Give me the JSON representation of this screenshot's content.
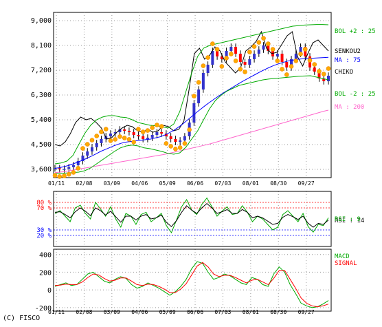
{
  "copyright": "(C) FISCO",
  "chart_data": [
    {
      "type": "line",
      "panel": "price",
      "grid": true,
      "ylim": [
        3300,
        9300
      ],
      "y_ticks": [
        3600,
        4500,
        5400,
        6300,
        7200,
        8100,
        9000
      ],
      "y_tick_labels": [
        "3,600",
        "4,500",
        "5,400",
        "6,300",
        "7,200",
        "8,100",
        "9,000"
      ],
      "x_tick_labels": [
        "01/11",
        "02/08",
        "03/09",
        "04/06",
        "05/09",
        "06/06",
        "07/03",
        "08/01",
        "08/30",
        "09/27"
      ],
      "legend": [
        {
          "label": "BOL +2 : 25",
          "color": "#00aa00"
        },
        {
          "label": "SENKOU2",
          "color": "#000000"
        },
        {
          "label": "MA : 75",
          "color": "#0000ff"
        },
        {
          "label": "CHIKO",
          "color": "#000000"
        },
        {
          "label": "BOL -2 : 25",
          "color": "#00aa00"
        },
        {
          "label": "MA : 200",
          "color": "#ff66cc"
        }
      ],
      "series": [
        {
          "name": "CHIKO",
          "color": "#000000",
          "values": [
            4500,
            4450,
            4600,
            4900,
            5300,
            5500,
            5400,
            5450,
            5300,
            5100,
            4700,
            4750,
            4950,
            5100,
            5200,
            5150,
            5000,
            4950,
            5050,
            4950,
            5000,
            5200,
            5150,
            5000,
            5050,
            5350,
            6500,
            7800,
            8000,
            7600,
            7750,
            8050,
            7900,
            7500,
            7300,
            7100,
            7300,
            7900,
            8050,
            8250,
            8600,
            8000,
            7800,
            7850,
            8150,
            8450,
            8600,
            7700,
            7350,
            7800,
            8200,
            8300,
            8100,
            7900
          ]
        },
        {
          "name": "MA : 75",
          "color": "#0000ff",
          "values": [
            3640,
            3660,
            3700,
            3740,
            3800,
            3860,
            3930,
            4000,
            4080,
            4160,
            4250,
            4320,
            4390,
            4460,
            4520,
            4570,
            4600,
            4620,
            4640,
            4660,
            4680,
            4700,
            4740,
            4780,
            4840,
            4920,
            5010,
            5120,
            5240,
            5380,
            5520,
            5660,
            5790,
            5920,
            6040,
            6160,
            6270,
            6380,
            6480,
            6580,
            6680,
            6780,
            6870,
            6960,
            7050,
            7140,
            7220,
            7300,
            7370,
            7430,
            7480,
            7530,
            7560,
            7590,
            7610,
            7620,
            7630,
            7640,
            7650,
            7660,
            7670
          ]
        },
        {
          "name": "MA : 200",
          "color": "#ff66cc",
          "values": [
            3480,
            3500,
            3520,
            3550,
            3580,
            3610,
            3640,
            3670,
            3700,
            3730,
            3760,
            3790,
            3820,
            3850,
            3880,
            3910,
            3940,
            3970,
            4000,
            4030,
            4060,
            4090,
            4120,
            4150,
            4190,
            4230,
            4270,
            4310,
            4350,
            4390,
            4430,
            4470,
            4510,
            4560,
            4610,
            4660,
            4710,
            4760,
            4810,
            4860,
            4910,
            4960,
            5010,
            5060,
            5110,
            5160,
            5210,
            5260,
            5310,
            5360,
            5410,
            5460,
            5510,
            5560,
            5610,
            5660,
            5710,
            5750
          ]
        },
        {
          "name": "BOL +2 : 25",
          "color": "#00aa00",
          "values": [
            3800,
            3830,
            3900,
            4100,
            4500,
            4900,
            5200,
            5400,
            5500,
            5550,
            5550,
            5500,
            5480,
            5400,
            5300,
            5250,
            5200,
            5180,
            5150,
            5100,
            5250,
            5700,
            6400,
            7100,
            7700,
            8000,
            8100,
            8150,
            8200,
            8250,
            8300,
            8350,
            8400,
            8450,
            8500,
            8550,
            8600,
            8650,
            8700,
            8750,
            8800,
            8820,
            8840,
            8850,
            8860,
            8860,
            8850
          ]
        },
        {
          "name": "BOL -2 : 25",
          "color": "#00aa00",
          "values": [
            3450,
            3450,
            3470,
            3480,
            3500,
            3550,
            3650,
            3800,
            3950,
            4100,
            4250,
            4380,
            4450,
            4480,
            4450,
            4380,
            4350,
            4300,
            4250,
            4180,
            4150,
            4200,
            4400,
            4700,
            5000,
            5400,
            5800,
            6100,
            6300,
            6450,
            6550,
            6650,
            6700,
            6750,
            6800,
            6850,
            6880,
            6900,
            6920,
            6940,
            6960,
            6980,
            6990,
            7000,
            6950,
            6900,
            6850
          ]
        },
        {
          "name": "MACD",
          "panel": "macd",
          "color": "#00aa00",
          "values": [
            40,
            60,
            80,
            50,
            60,
            120,
            180,
            200,
            150,
            100,
            80,
            120,
            150,
            130,
            60,
            20,
            40,
            80,
            50,
            20,
            -20,
            -60,
            -20,
            40,
            120,
            240,
            320,
            300,
            200,
            120,
            140,
            180,
            160,
            120,
            80,
            60,
            140,
            120,
            60,
            40,
            180,
            260,
            200,
            60,
            -40,
            -150,
            -180,
            -200,
            -190,
            -160,
            -120
          ]
        },
        {
          "name": "SIGNAL",
          "panel": "macd",
          "color": "#ff0000",
          "values": [
            50,
            55,
            65,
            60,
            60,
            90,
            140,
            180,
            170,
            130,
            100,
            110,
            135,
            135,
            100,
            60,
            50,
            65,
            60,
            40,
            10,
            -30,
            -30,
            10,
            70,
            170,
            270,
            310,
            260,
            180,
            150,
            165,
            165,
            140,
            110,
            80,
            110,
            120,
            90,
            60,
            130,
            220,
            220,
            120,
            20,
            -90,
            -150,
            -180,
            -190,
            -180,
            -160
          ]
        }
      ],
      "candles": [
        3640,
        3600,
        3620,
        3680,
        3750,
        3900,
        4100,
        4250,
        4400,
        4550,
        4700,
        4800,
        4900,
        4950,
        5050,
        5000,
        4950,
        4850,
        4800,
        4700,
        4750,
        4850,
        4950,
        4900,
        4800,
        4700,
        4600,
        4650,
        4800,
        5300,
        6000,
        6500,
        7100,
        7400,
        7900,
        7700,
        7600,
        7900,
        8050,
        7800,
        7500,
        7400,
        7600,
        7800,
        7950,
        8100,
        7900,
        7700,
        7800,
        7500,
        7300,
        7600,
        7800,
        8050,
        7700,
        7300,
        7150,
        6900,
        6800,
        7000
      ]
    },
    {
      "type": "line",
      "panel": "rsi",
      "ylim": [
        0,
        100
      ],
      "y_tick_labels": [
        "80 %",
        "70 %",
        "30 %",
        "20 %"
      ],
      "legend": [
        {
          "label": "RSI : 14",
          "color": "#000000"
        },
        {
          "label": "RSI : 9",
          "color": "#00aa00"
        }
      ],
      "series": [
        {
          "name": "RSI : 9",
          "color": "#00aa00",
          "values": [
            60,
            65,
            55,
            45,
            70,
            75,
            60,
            50,
            80,
            68,
            55,
            72,
            50,
            35,
            60,
            55,
            40,
            58,
            62,
            45,
            52,
            60,
            38,
            25,
            48,
            72,
            85,
            66,
            58,
            76,
            88,
            72,
            55,
            64,
            72,
            58,
            60,
            74,
            62,
            45,
            55,
            50,
            40,
            30,
            35,
            58,
            65,
            55,
            45,
            60,
            36,
            26,
            40,
            38,
            52
          ]
        },
        {
          "name": "RSI : 14",
          "color": "#000000",
          "values": [
            62,
            63,
            58,
            52,
            63,
            70,
            64,
            56,
            70,
            65,
            57,
            64,
            54,
            44,
            55,
            55,
            48,
            55,
            58,
            50,
            52,
            57,
            44,
            36,
            47,
            62,
            74,
            66,
            60,
            70,
            78,
            70,
            60,
            63,
            67,
            60,
            60,
            67,
            62,
            52,
            55,
            52,
            46,
            40,
            42,
            53,
            58,
            54,
            49,
            55,
            42,
            35,
            42,
            40,
            48
          ]
        }
      ]
    },
    {
      "type": "line",
      "panel": "macd",
      "ylim": [
        -240,
        460
      ],
      "y_ticks": [
        400,
        200,
        0,
        -200
      ],
      "y_tick_labels": [
        "400",
        "200",
        "0",
        "-200"
      ],
      "legend": [
        {
          "label": "MACD",
          "color": "#00aa00"
        },
        {
          "label": "SIGNAL",
          "color": "#ff0000"
        }
      ]
    }
  ]
}
